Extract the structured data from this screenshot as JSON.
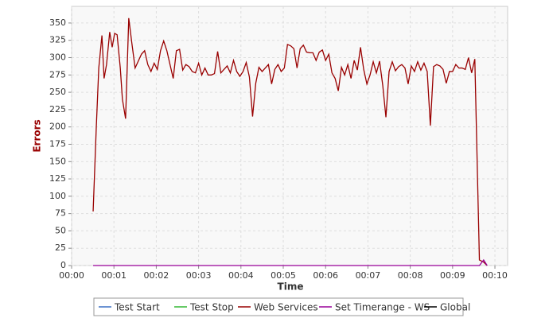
{
  "chart_data": {
    "type": "line",
    "x_label": "Time",
    "y_label": "Errors",
    "xlim": [
      0,
      618
    ],
    "ylim": [
      0,
      374
    ],
    "xticks": [
      {
        "value": 0,
        "label": "00:00"
      },
      {
        "value": 60,
        "label": "00:01"
      },
      {
        "value": 120,
        "label": "00:02"
      },
      {
        "value": 180,
        "label": "00:03"
      },
      {
        "value": 240,
        "label": "00:04"
      },
      {
        "value": 300,
        "label": "00:05"
      },
      {
        "value": 360,
        "label": "00:06"
      },
      {
        "value": 420,
        "label": "00:07"
      },
      {
        "value": 480,
        "label": "00:08"
      },
      {
        "value": 540,
        "label": "00:09"
      },
      {
        "value": 600,
        "label": "00:10"
      }
    ],
    "yticks": [
      0,
      25,
      50,
      75,
      100,
      125,
      150,
      175,
      200,
      225,
      250,
      275,
      300,
      325,
      350
    ],
    "grid": true,
    "series": [
      {
        "name": "Test Start",
        "color": "#3a6fc4",
        "x": [],
        "values": []
      },
      {
        "name": "Test Stop",
        "color": "#33b833",
        "x": [],
        "values": []
      },
      {
        "name": "Web Services",
        "color": "#990000",
        "x": [
          30.5,
          35,
          38.5,
          43,
          46,
          49.5,
          54,
          57.5,
          61,
          64.5,
          69,
          72,
          76.5,
          81,
          85.5,
          90,
          94.5,
          99,
          103.5,
          108,
          112.5,
          117,
          121.5,
          126,
          130.5,
          135,
          139.5,
          144,
          148.5,
          153,
          157.5,
          162,
          166.5,
          171,
          175.5,
          180,
          184.5,
          189,
          193.5,
          198,
          202.5,
          207,
          211.5,
          216,
          220.5,
          225,
          229.5,
          234,
          238.5,
          243,
          247.5,
          252,
          256.5,
          261,
          265.5,
          270,
          274.5,
          279,
          283.5,
          288,
          292.5,
          297,
          301.5,
          306,
          310.5,
          315,
          319.5,
          324,
          328.5,
          333,
          337.5,
          342,
          346.5,
          351,
          355.5,
          360,
          364.5,
          369,
          373.5,
          378,
          382.5,
          387,
          391.5,
          396,
          400.5,
          405,
          409.5,
          414,
          418.5,
          423,
          427.5,
          432,
          436.5,
          441,
          445.5,
          450,
          454.5,
          459,
          463.5,
          468,
          472.5,
          477,
          481.5,
          486,
          490.5,
          495,
          499.5,
          504,
          508.5,
          513,
          517.5,
          522,
          526.5,
          531,
          535.5,
          540,
          544.5,
          549,
          553.5,
          558,
          562.5,
          567,
          571.5,
          578,
          584,
          589
        ],
        "values": [
          78,
          200,
          285,
          332,
          270,
          290,
          337,
          315,
          335,
          333,
          285,
          240,
          212,
          357,
          320,
          285,
          295,
          305,
          310,
          290,
          280,
          292,
          283,
          310,
          324,
          310,
          290,
          270,
          310,
          312,
          282,
          290,
          287,
          280,
          278,
          292,
          275,
          285,
          275,
          275,
          277,
          309,
          278,
          283,
          288,
          278,
          296,
          280,
          273,
          280,
          293,
          272,
          215,
          263,
          286,
          280,
          285,
          290,
          262,
          283,
          290,
          280,
          285,
          319,
          317,
          313,
          285,
          313,
          318,
          308,
          307,
          307,
          296,
          308,
          311,
          296,
          305,
          278,
          270,
          252,
          286,
          275,
          290,
          270,
          296,
          282,
          315,
          283,
          262,
          275,
          294,
          278,
          295,
          260,
          214,
          280,
          294,
          281,
          287,
          290,
          285,
          262,
          288,
          280,
          294,
          282,
          292,
          280,
          202,
          287,
          290,
          288,
          283,
          263,
          280,
          280,
          290,
          285,
          285,
          283,
          300,
          278,
          298,
          8,
          5,
          0
        ]
      },
      {
        "name": "Set Timerange - WS",
        "color": "#990099",
        "x": [
          30.5,
          578,
          584,
          589
        ],
        "values": [
          0,
          0,
          8,
          0
        ]
      },
      {
        "name": "Global",
        "color": "#000000",
        "x": [],
        "values": []
      }
    ]
  }
}
